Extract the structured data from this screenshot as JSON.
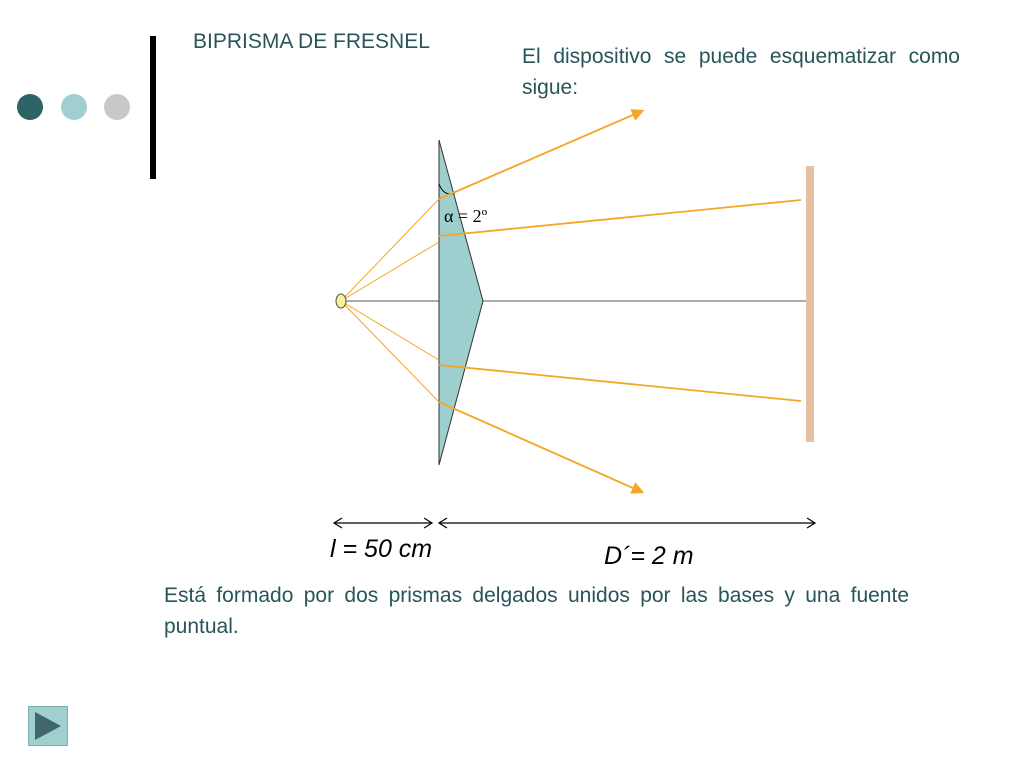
{
  "slide": {
    "title": "BIPRISMA DE FRESNEL",
    "intro": "El dispositivo se puede esquematizar como sigue:",
    "caption": "Está formado por dos prismas delgados unidos por las bases y una fuente puntual."
  },
  "decor": {
    "dots": [
      "#2f6466",
      "#9fcfd1",
      "#c8c8c8"
    ]
  },
  "diagram": {
    "angle_label": "α = 2º",
    "distance_l": "l = 50 cm",
    "distance_d": "D´= 2 m",
    "colors": {
      "prism": "#9dcfcf",
      "rays": "#f5a623",
      "screen": "#e6c0a0",
      "source": "#f6f296"
    }
  },
  "nav": {
    "next_icon": "play-triangle-icon"
  }
}
